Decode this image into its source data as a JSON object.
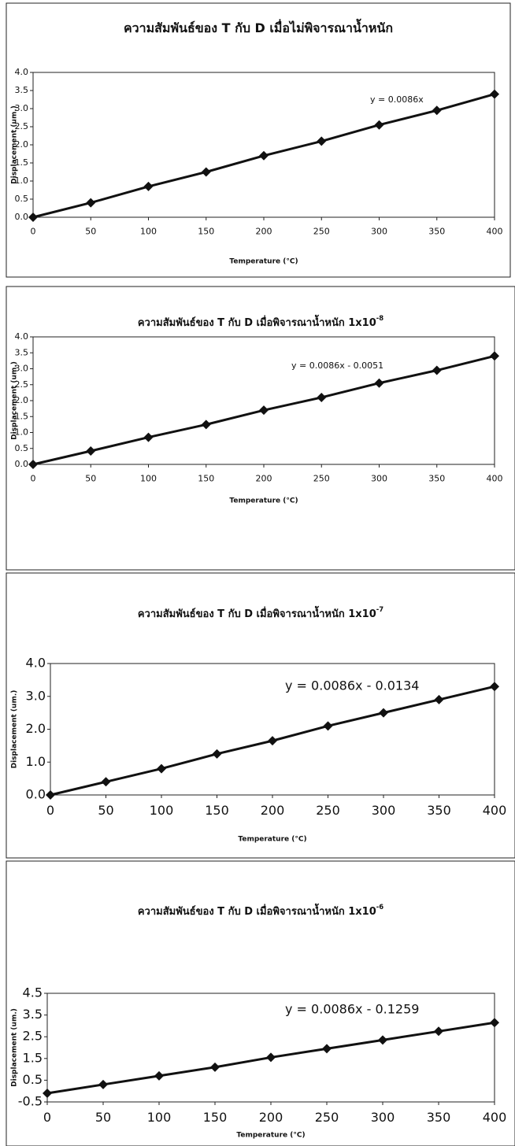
{
  "chart_data": [
    {
      "type": "line",
      "title": "ความสัมพันธ์ของ T กับ D เมื่อไม่พิจารณาน้ำหนัก",
      "x_label": "Temperature (°C)",
      "y_label": "Displacement (um.)",
      "annotation": "y = 0.0086x",
      "x": [
        0,
        50,
        100,
        150,
        200,
        250,
        300,
        350,
        400
      ],
      "values": [
        0.0,
        0.4,
        0.85,
        1.25,
        1.7,
        2.1,
        2.55,
        2.95,
        3.4
      ],
      "color": "#111111",
      "xlim": [
        0,
        400
      ],
      "xticks": [
        0,
        50,
        100,
        150,
        200,
        250,
        300,
        350,
        400
      ],
      "ylim": [
        0,
        4
      ],
      "yticks": [
        {
          "value": 0,
          "label": "0.0"
        },
        0.5,
        {
          "value": 1,
          "label": "1.0"
        },
        1.5,
        {
          "value": 2,
          "label": "2.0"
        },
        2.5,
        {
          "value": 3,
          "label": "3.0"
        },
        3.5,
        {
          "value": 4,
          "label": "4.0"
        }
      ]
    },
    {
      "type": "line",
      "title": "ความสัมพันธ์ของ T กับ D เมื่อพิจารณาน้ำหนัก 1x10",
      "title_superscript": "-8",
      "x_label": "Temperature (°C)",
      "y_label": "Displacement (um.)",
      "annotation": "y = 0.0086x - 0.0051",
      "x": [
        0,
        50,
        100,
        150,
        200,
        250,
        300,
        350,
        400
      ],
      "values": [
        0.0,
        0.42,
        0.85,
        1.25,
        1.7,
        2.1,
        2.55,
        2.95,
        3.4
      ],
      "color": "#111111",
      "xlim": [
        0,
        400
      ],
      "xticks": [
        0,
        50,
        100,
        150,
        200,
        250,
        300,
        350,
        400
      ],
      "ylim": [
        0,
        4
      ],
      "yticks": [
        {
          "value": 0,
          "label": "0.0"
        },
        0.5,
        {
          "value": 1,
          "label": "1.0"
        },
        1.5,
        {
          "value": 2,
          "label": "2.0"
        },
        2.5,
        {
          "value": 3,
          "label": "3.0"
        },
        3.5,
        {
          "value": 4,
          "label": "4.0"
        }
      ]
    },
    {
      "type": "line",
      "title": "ความสัมพันธ์ของ T กับ D เมื่อพิจารณาน้ำหนัก 1x10",
      "title_superscript": "-7",
      "x_label": "Temperature (°C)",
      "y_label": "Displacement (um.)",
      "annotation": "y = 0.0086x - 0.0134",
      "x": [
        0,
        50,
        100,
        150,
        200,
        250,
        300,
        350,
        400
      ],
      "values": [
        0.0,
        0.4,
        0.8,
        1.25,
        1.65,
        2.1,
        2.5,
        2.9,
        3.3
      ],
      "color": "#111111",
      "xlim": [
        0,
        400
      ],
      "xticks": [
        0,
        50,
        100,
        150,
        200,
        250,
        300,
        350,
        400
      ],
      "ylim": [
        0,
        4
      ],
      "yticks": [
        {
          "value": 0,
          "label": "0.0"
        },
        {
          "value": 1,
          "label": "1.0"
        },
        {
          "value": 2,
          "label": "2.0"
        },
        {
          "value": 3,
          "label": "3.0"
        },
        {
          "value": 4,
          "label": "4.0"
        }
      ]
    },
    {
      "type": "line",
      "title": "ความสัมพันธ์ของ T กับ D เมื่อพิจารณาน้ำหนัก 1x10",
      "title_superscript": "-6",
      "x_label": "Temperature (°C)",
      "y_label": "Displacement (um.)",
      "annotation": "y = 0.0086x - 0.1259",
      "x": [
        0,
        50,
        100,
        150,
        200,
        250,
        300,
        350,
        400
      ],
      "values": [
        -0.1,
        0.3,
        0.7,
        1.1,
        1.55,
        1.95,
        2.35,
        2.75,
        3.15
      ],
      "color": "#111111",
      "xlim": [
        0,
        400
      ],
      "xticks": [
        0,
        50,
        100,
        150,
        200,
        250,
        300,
        350,
        400
      ],
      "ylim": [
        -0.5,
        4.5
      ],
      "yticks": [
        -0.5,
        0.5,
        1.5,
        2.5,
        3.5,
        4.5
      ]
    }
  ]
}
